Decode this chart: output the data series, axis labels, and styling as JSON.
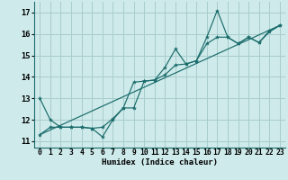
{
  "xlabel": "Humidex (Indice chaleur)",
  "bg_color": "#ceeaea",
  "grid_color": "#a8cccc",
  "line_color": "#1a6b6b",
  "xlim": [
    -0.5,
    23.5
  ],
  "ylim": [
    10.7,
    17.5
  ],
  "xticks": [
    0,
    1,
    2,
    3,
    4,
    5,
    6,
    7,
    8,
    9,
    10,
    11,
    12,
    13,
    14,
    15,
    16,
    17,
    18,
    19,
    20,
    21,
    22,
    23
  ],
  "yticks": [
    11,
    12,
    13,
    14,
    15,
    16,
    17
  ],
  "series1_y": [
    13.0,
    12.0,
    11.65,
    11.65,
    11.65,
    11.6,
    11.2,
    12.0,
    12.55,
    12.55,
    13.8,
    13.85,
    14.45,
    15.3,
    14.6,
    14.75,
    15.85,
    17.1,
    15.85,
    15.55,
    15.85,
    15.6,
    16.15,
    16.4
  ],
  "series2_y": [
    11.3,
    11.65,
    11.65,
    11.65,
    11.65,
    11.6,
    11.65,
    12.05,
    12.55,
    13.75,
    13.8,
    13.85,
    14.1,
    14.55,
    14.6,
    14.75,
    15.55,
    15.85,
    15.85,
    15.55,
    15.85,
    15.6,
    16.1,
    16.4
  ],
  "series3_x": [
    0,
    23
  ],
  "series3_y": [
    11.3,
    16.4
  ],
  "marker_size": 3.0,
  "linewidth": 0.85,
  "tick_fontsize": 5.8,
  "xlabel_fontsize": 6.5
}
